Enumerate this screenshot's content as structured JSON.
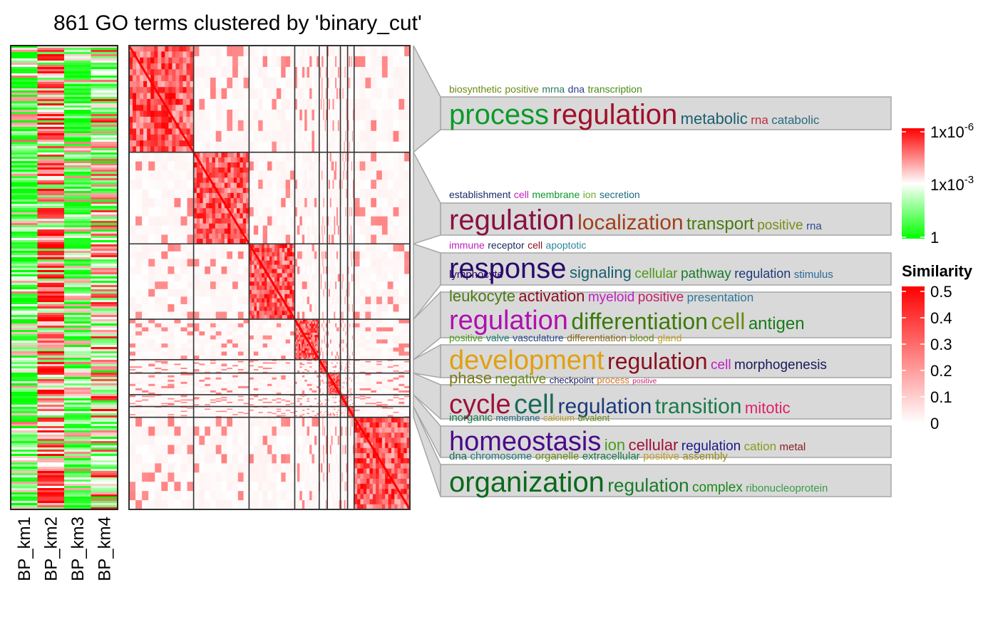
{
  "chart_data": {
    "type": "heatmap",
    "title": "861 GO terms clustered by 'binary_cut'",
    "n_terms": 861,
    "pvalue_heatmap": {
      "columns": [
        "BP_km1",
        "BP_km2",
        "BP_km3",
        "BP_km4"
      ],
      "color_scale": [
        "#00ff00",
        "#ffffff",
        "#ff0000"
      ]
    },
    "similarity_heatmap": {
      "clusters": [
        {
          "size": 198,
          "color": "#ff0000"
        },
        {
          "size": 170,
          "color": "#ff0000"
        },
        {
          "size": 140,
          "color": "#ff0000"
        },
        {
          "size": 75,
          "color": "#ff0000"
        },
        {
          "size": 25,
          "color": "#ff0000"
        },
        {
          "size": 40,
          "color": "#ff0000"
        },
        {
          "size": 22,
          "color": "#ff0000"
        },
        {
          "size": 20,
          "color": "#ff0000"
        },
        {
          "size": 171,
          "color": "#ff0000"
        }
      ]
    },
    "legends": {
      "pvalue": {
        "ticks": [
          "1x10",
          "1x10",
          "1"
        ],
        "exponents": [
          "-6",
          "-3",
          ""
        ],
        "colors": [
          "#ff0000",
          "#ffffff",
          "#00ff00"
        ]
      },
      "similarity": {
        "title": "Similarity",
        "ticks": [
          "0.5",
          "0.4",
          "0.3",
          "0.2",
          "0.1",
          "0"
        ]
      }
    },
    "word_clouds": [
      {
        "small": [
          {
            "w": "biosynthetic",
            "c": "#6a8a12"
          },
          {
            "w": "positive",
            "c": "#6a8a12"
          },
          {
            "w": "mrna",
            "c": "#2a7a5a"
          },
          {
            "w": "dna",
            "c": "#2c3e8a"
          },
          {
            "w": "transcription",
            "c": "#4a8a12"
          }
        ],
        "large": [
          {
            "w": "process",
            "c": "#0a9a2a",
            "s": 40
          },
          {
            "w": "regulation",
            "c": "#a0102a",
            "s": 40
          },
          {
            "w": "metabolic",
            "c": "#1a5e6e",
            "s": 22
          },
          {
            "w": "rna",
            "c": "#c02a3a",
            "s": 17
          },
          {
            "w": "catabolic",
            "c": "#2a6a7e",
            "s": 17
          }
        ]
      },
      {
        "small": [
          {
            "w": "establishment",
            "c": "#1a2a6a"
          },
          {
            "w": "cell",
            "c": "#c020c0"
          },
          {
            "w": "membrane",
            "c": "#0a9a2a"
          },
          {
            "w": "ion",
            "c": "#6aaa2a"
          },
          {
            "w": "secretion",
            "c": "#1a6a7e"
          }
        ],
        "large": [
          {
            "w": "regulation",
            "c": "#8a1040",
            "s": 40
          },
          {
            "w": "localization",
            "c": "#a0401a",
            "s": 30
          },
          {
            "w": "transport",
            "c": "#4a7a12",
            "s": 24
          },
          {
            "w": "positive",
            "c": "#7a8a1a",
            "s": 19
          },
          {
            "w": "rna",
            "c": "#2a4a8a",
            "s": 15
          }
        ]
      },
      {
        "small": [
          {
            "w": "immune",
            "c": "#c020c0"
          },
          {
            "w": "receptor",
            "c": "#1a2a5a"
          },
          {
            "w": "cell",
            "c": "#8a1020"
          },
          {
            "w": "apoptotic",
            "c": "#2a8a9a"
          }
        ],
        "large": [
          {
            "w": "response",
            "c": "#2a0a6a",
            "s": 40
          },
          {
            "w": "signaling",
            "c": "#1a5e6e",
            "s": 22
          },
          {
            "w": "cellular",
            "c": "#4a9a1a",
            "s": 19
          },
          {
            "w": "pathway",
            "c": "#1a7a2a",
            "s": 19
          },
          {
            "w": "regulation",
            "c": "#1a3a7a",
            "s": 18
          },
          {
            "w": "stimulus",
            "c": "#2a6a9a",
            "s": 15
          }
        ],
        "extra": {
          "w": "lymphocyte",
          "c": "#2a0a6a"
        }
      },
      {
        "small": [
          {
            "w": "leukocyte",
            "c": "#4a7a12",
            "s": 22
          },
          {
            "w": "activation",
            "c": "#8a1020",
            "s": 22
          },
          {
            "w": "myeloid",
            "c": "#c020c0",
            "s": 19
          },
          {
            "w": "positive",
            "c": "#c0206a",
            "s": 19
          },
          {
            "w": "presentation",
            "c": "#2a7a9a",
            "s": 17
          }
        ],
        "large": [
          {
            "w": "regulation",
            "c": "#b010b0",
            "s": 38
          },
          {
            "w": "differentiation",
            "c": "#3a7a0a",
            "s": 32
          },
          {
            "w": "cell",
            "c": "#6a8a1a",
            "s": 32
          },
          {
            "w": "antigen",
            "c": "#1a7a1a",
            "s": 24
          }
        ],
        "extra_row": [
          {
            "w": "positive",
            "c": "#4a9a1a"
          },
          {
            "w": "valve",
            "c": "#1a7a7a"
          },
          {
            "w": "vasculature",
            "c": "#2a4a8a"
          },
          {
            "w": "differentiation",
            "c": "#8a6a1a"
          },
          {
            "w": "blood",
            "c": "#6a8a1a"
          },
          {
            "w": "gland",
            "c": "#c0a02a"
          }
        ]
      },
      {
        "large": [
          {
            "w": "development",
            "c": "#e0a010",
            "s": 38
          },
          {
            "w": "regulation",
            "c": "#8a1020",
            "s": 32
          },
          {
            "w": "cell",
            "c": "#c020c0",
            "s": 19
          },
          {
            "w": "morphogenesis",
            "c": "#1a1a5a",
            "s": 19
          }
        ],
        "extra_row": [
          {
            "w": "phase",
            "c": "#7a7a1a",
            "s": 22
          },
          {
            "w": "negative",
            "c": "#6a8a1a",
            "s": 19
          },
          {
            "w": "checkpoint",
            "c": "#1a1a5a",
            "s": 13
          },
          {
            "w": "process",
            "c": "#d0701a",
            "s": 13
          },
          {
            "w": "positive",
            "c": "#c0206a",
            "s": 10
          }
        ]
      },
      {
        "large": [
          {
            "w": "cycle",
            "c": "#a0103a",
            "s": 38
          },
          {
            "w": "cell",
            "c": "#1a6a5a",
            "s": 38
          },
          {
            "w": "regulation",
            "c": "#1a3a7a",
            "s": 30
          },
          {
            "w": "transition",
            "c": "#1a7a4a",
            "s": 30
          },
          {
            "w": "mitotic",
            "c": "#e0206a",
            "s": 22
          }
        ],
        "extra_row": [
          {
            "w": "inorganic",
            "c": "#1a7a4a",
            "s": 15
          },
          {
            "w": "membrane",
            "c": "#2a6a7a",
            "s": 13
          },
          {
            "w": "calcium",
            "c": "#c0a02a",
            "s": 13
          },
          {
            "w": "divalent",
            "c": "#6a8a1a",
            "s": 13
          }
        ]
      },
      {
        "large": [
          {
            "w": "homeostasis",
            "c": "#4a0a8a",
            "s": 38
          },
          {
            "w": "ion",
            "c": "#4a9a1a",
            "s": 22
          },
          {
            "w": "cellular",
            "c": "#a0103a",
            "s": 22
          },
          {
            "w": "regulation",
            "c": "#1a1a8a",
            "s": 19
          },
          {
            "w": "cation",
            "c": "#8a9a1a",
            "s": 17
          },
          {
            "w": "metal",
            "c": "#8a1a1a",
            "s": 15
          }
        ],
        "extra_row": [
          {
            "w": "dna",
            "c": "#1a6a5a",
            "s": 15
          },
          {
            "w": "chromosome",
            "c": "#2a7a7a",
            "s": 15
          },
          {
            "w": "organelle",
            "c": "#6a8a1a",
            "s": 15
          },
          {
            "w": "extracellular",
            "c": "#1a7a4a",
            "s": 15
          },
          {
            "w": "positive",
            "c": "#c0a02a",
            "s": 15
          },
          {
            "w": "assembly",
            "c": "#9a8a1a",
            "s": 15
          }
        ]
      },
      {
        "large": [
          {
            "w": "organization",
            "c": "#0a6a1a",
            "s": 40
          },
          {
            "w": "regulation",
            "c": "#1a7a2a",
            "s": 26
          },
          {
            "w": "complex",
            "c": "#1a8a1a",
            "s": 19
          },
          {
            "w": "ribonucleoprotein",
            "c": "#3a9a4a",
            "s": 15
          }
        ]
      }
    ]
  }
}
